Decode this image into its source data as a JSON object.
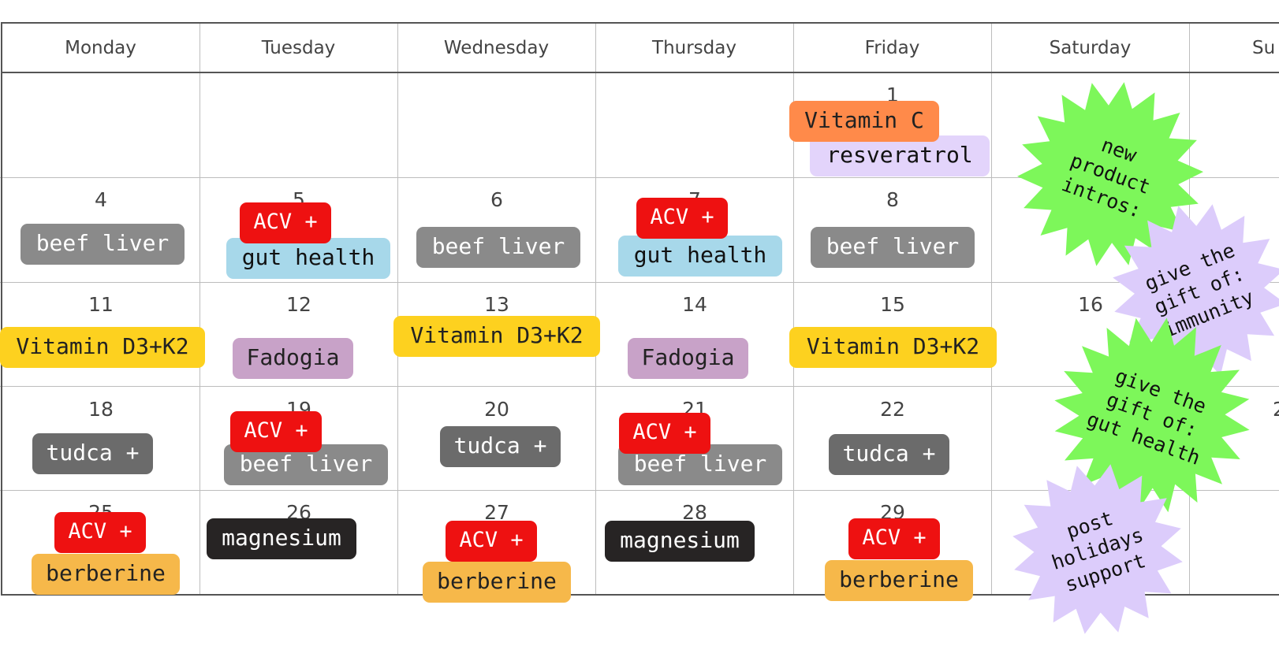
{
  "calendar": {
    "day_names": [
      "Monday",
      "Tuesday",
      "Wednesday",
      "Thursday",
      "Friday",
      "Saturday",
      "Su"
    ],
    "days": {
      "d1": "1",
      "d4": "4",
      "d5": "5",
      "d6": "6",
      "d7": "7",
      "d8": "8",
      "d11": "11",
      "d12": "12",
      "d13": "13",
      "d14": "14",
      "d15": "15",
      "d16": "16",
      "d18": "18",
      "d19": "19",
      "d20": "20",
      "d21": "21",
      "d22": "22",
      "d23": "2",
      "d25": "25",
      "d26": "26",
      "d27": "27",
      "d28": "28",
      "d29": "29"
    },
    "events": {
      "vitc": "Vitamin C",
      "resv": "resveratrol",
      "beef4": "beef liver",
      "acv5": "ACV +",
      "gut5": "gut health",
      "beef6": "beef liver",
      "acv7": "ACV +",
      "gut7": "gut health",
      "beef8": "beef liver",
      "d3k11": "Vitamin D3+K2",
      "fad12": "Fadogia",
      "d3k13": "Vitamin D3+K2",
      "fad14": "Fadogia",
      "d3k15": "Vitamin D3+K2",
      "tudca18": "tudca +",
      "acv19": "ACV +",
      "beef19": "beef liver",
      "tudca20": "tudca +",
      "acv21": "ACV +",
      "beef21": "beef liver",
      "tudca22": "tudca +",
      "acv25": "ACV +",
      "berb25": "berberine",
      "mag26": "magnesium",
      "acv27": "ACV +",
      "berb27": "berberine",
      "mag28": "magnesium",
      "acv29": "ACV +",
      "berb29": "berberine"
    }
  },
  "stickers": {
    "new_product": "new\nproduct\nintros:",
    "immunity": "give the\ngift of:\nimmunity",
    "gut_health": "give the\ngift of:\ngut health",
    "post_holidays": "post\nholidays\nsupport"
  },
  "colors": {
    "acv": "#ee1111",
    "beef_liver": "#8a8a8a",
    "tudca": "#6b6b6b",
    "gut_health": "#a7d8ea",
    "vitamin_d3k2": "#fdd11f",
    "fadogia": "#c8a2c8",
    "vitamin_c": "#ff8a4a",
    "resveratrol": "#e3d4fb",
    "magnesium": "#272424",
    "berberine": "#f6b84a",
    "sticker_green": "#7df75a",
    "sticker_lavender": "#dcccfb"
  }
}
